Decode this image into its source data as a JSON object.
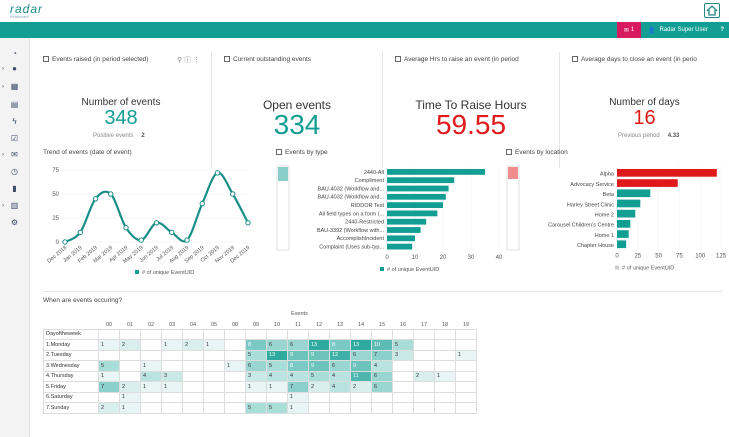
{
  "app": {
    "logo_text": "radar",
    "logo_sub": "healthcare"
  },
  "header": {
    "mail_count": "1",
    "user_name": "Radar Super User",
    "help": "?"
  },
  "kpis": [
    {
      "title": "Events raised (in period selected)",
      "label": "Number of events",
      "value": "348",
      "sub_label": "Positive events",
      "sub_value": "2",
      "color": "#139e93"
    },
    {
      "title": "Current outstanding events",
      "label": "Open events",
      "value": "334",
      "sub_label": "",
      "sub_value": "",
      "color": "#139e93"
    },
    {
      "title": "Average Hrs to raise an event (in period",
      "label": "Time To Raise Hours",
      "value": "59.55",
      "sub_label": "",
      "sub_value": "",
      "color": "#e0191b"
    },
    {
      "title": "Average days to close an event (in perio",
      "label": "Number of days",
      "value": "16",
      "sub_label": "Previous period",
      "sub_value": "4.33",
      "color": "#e0191b"
    }
  ],
  "trend": {
    "title": "Trend of events (date of event)",
    "legend": "# of unique EventUID",
    "chart_data": {
      "type": "line",
      "x": [
        "Dec 2018",
        "Jan 2019",
        "Feb 2019",
        "Mar 2019",
        "Apr 2019",
        "May 2019",
        "Jun 2019",
        "Jul 2019",
        "Aug 2019",
        "Sep 2019",
        "Oct 2019",
        "Nov 2019",
        "Dec 2019"
      ],
      "values": [
        0,
        10,
        45,
        50,
        15,
        2,
        20,
        10,
        2,
        40,
        72,
        50,
        20
      ],
      "yticks": [
        "75",
        "50",
        "25",
        "0"
      ],
      "ylim": [
        0,
        75
      ]
    }
  },
  "by_type": {
    "title": "Events by type",
    "legend": "# of unique EventUID",
    "chart_data": {
      "type": "bar",
      "categories": [
        "2440-All",
        "Compliment",
        "BAU-4032 (Workflow and...",
        "BAU-4032 (Workflow and...",
        "RIDDOR Test",
        "All field types on a form (...",
        "2440-Restricted",
        "BAU-3392 (Workflow with...",
        "AccomplishIncident",
        "Complaint (Uses sub-typ..."
      ],
      "values": [
        35,
        24,
        22,
        21,
        20,
        18,
        14,
        12,
        10,
        9
      ],
      "xticks": [
        "0",
        "10",
        "20",
        "30",
        "40"
      ],
      "xlim": [
        0,
        40
      ]
    }
  },
  "by_location": {
    "title": "Events by location",
    "legend": "# of unique EventUID",
    "chart_data": {
      "type": "bar",
      "categories": [
        "Alpha",
        "Advocacy Service",
        "Beta",
        "Harley Street Clinic",
        "Home 2",
        "Carousel Children's Centre",
        "Home 1",
        "Chapter House"
      ],
      "values": [
        120,
        73,
        40,
        28,
        22,
        16,
        14,
        11
      ],
      "colors": [
        "#e0191b",
        "#e0191b",
        "#139e93",
        "#139e93",
        "#139e93",
        "#139e93",
        "#139e93",
        "#139e93"
      ],
      "xticks": [
        "0",
        "25",
        "50",
        "75",
        "100",
        "125"
      ],
      "xlim": [
        0,
        125
      ]
    }
  },
  "heatmap": {
    "title": "When are events occuring?",
    "events_label": "Events",
    "row_header": "Dayoftheweek",
    "hours": [
      "00",
      "01",
      "02",
      "03",
      "04",
      "05",
      "08",
      "09",
      "10",
      "11",
      "12",
      "13",
      "14",
      "15",
      "16",
      "17",
      "18",
      "19"
    ],
    "rows": [
      {
        "day": "1.Monday",
        "values": [
          "1",
          "2",
          "",
          "1",
          "2",
          "1",
          "",
          "8",
          "6",
          "6",
          "13",
          "8",
          "13",
          "10",
          "5",
          "",
          "",
          ""
        ]
      },
      {
        "day": "2.Tuesday",
        "values": [
          "",
          "",
          "",
          "",
          "",
          "",
          "",
          "5",
          "13",
          "9",
          "9",
          "12",
          "6",
          "7",
          "3",
          "",
          "",
          "1"
        ]
      },
      {
        "day": "3.Wednesday",
        "values": [
          "5",
          "",
          "1",
          "",
          "",
          "",
          "1",
          "6",
          "5",
          "8",
          "9",
          "6",
          "9",
          "4",
          "",
          "",
          "",
          ""
        ]
      },
      {
        "day": "4.Thursday",
        "values": [
          "1",
          "",
          "4",
          "3",
          "",
          "",
          "",
          "3",
          "4",
          "4",
          "5",
          "4",
          "11",
          "6",
          "",
          "2",
          "1",
          ""
        ]
      },
      {
        "day": "5.Friday",
        "values": [
          "7",
          "2",
          "1",
          "1",
          "",
          "",
          "",
          "1",
          "1",
          "7",
          "2",
          "4",
          "2",
          "6",
          "",
          "",
          "",
          ""
        ]
      },
      {
        "day": "6.Saturday",
        "values": [
          "",
          "1",
          "",
          "",
          "",
          "",
          "",
          "",
          "",
          "1",
          "",
          "",
          "",
          "",
          "",
          "",
          "",
          ""
        ]
      },
      {
        "day": "7.Sunday",
        "values": [
          "2",
          "1",
          "",
          "",
          "",
          "",
          "",
          "5",
          "5",
          "1",
          "",
          "",
          "",
          "",
          "",
          "",
          "",
          ""
        ]
      }
    ]
  }
}
